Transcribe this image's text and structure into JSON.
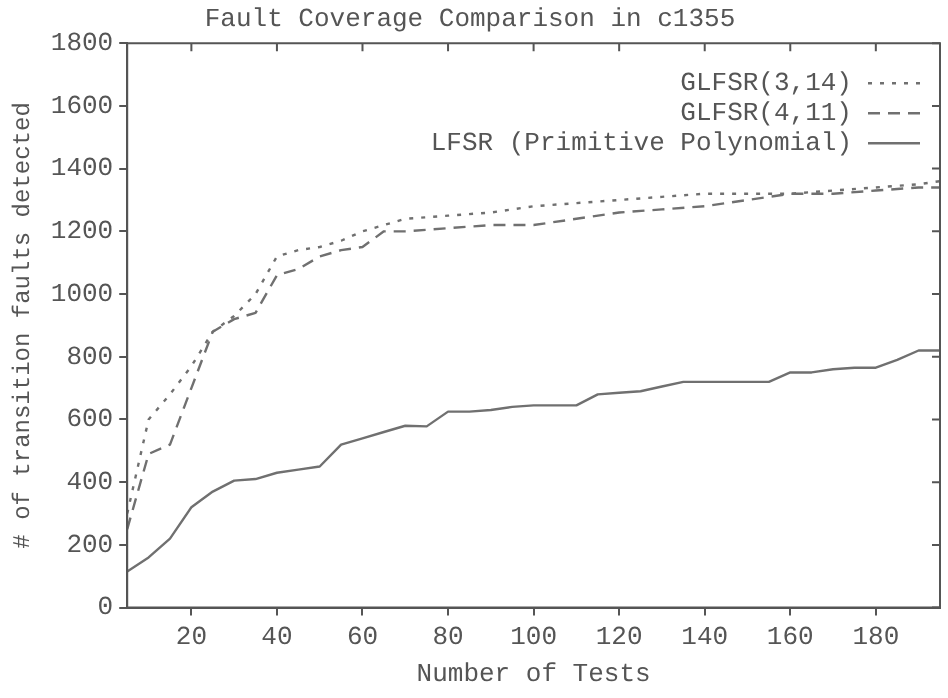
{
  "chart_data": {
    "type": "line",
    "title": "Fault Coverage Comparison in c1355",
    "xlabel": "Number of Tests",
    "ylabel": "# of transition faults detected",
    "xlim": [
      5,
      195
    ],
    "xticks": [
      20,
      40,
      60,
      80,
      100,
      120,
      140,
      160,
      180
    ],
    "ylim": [
      0,
      1800
    ],
    "yticks": [
      0,
      200,
      400,
      600,
      800,
      1000,
      1200,
      1400,
      1600,
      1800
    ],
    "grid": false,
    "legend": "top right",
    "marker": "none",
    "series": [
      {
        "name": "GLFSR(3,14)",
        "color": "#707070",
        "line_style": "dotted",
        "x": [
          5,
          10,
          15,
          20,
          25,
          30,
          35,
          40,
          45,
          50,
          55,
          60,
          65,
          70,
          75,
          80,
          90,
          100,
          110,
          120,
          130,
          140,
          150,
          160,
          170,
          180,
          190,
          195
        ],
        "values": [
          300,
          600,
          680,
          770,
          880,
          930,
          1000,
          1120,
          1140,
          1150,
          1170,
          1200,
          1220,
          1240,
          1245,
          1250,
          1260,
          1280,
          1290,
          1300,
          1310,
          1320,
          1320,
          1320,
          1330,
          1340,
          1350,
          1360
        ]
      },
      {
        "name": "GLFSR(4,11)",
        "color": "#707070",
        "line_style": "dashed",
        "x": [
          5,
          10,
          15,
          20,
          25,
          30,
          35,
          40,
          45,
          50,
          55,
          60,
          65,
          70,
          80,
          90,
          100,
          110,
          120,
          130,
          140,
          150,
          160,
          170,
          180,
          190,
          195
        ],
        "values": [
          250,
          490,
          520,
          700,
          880,
          920,
          940,
          1060,
          1080,
          1120,
          1140,
          1150,
          1200,
          1200,
          1210,
          1220,
          1220,
          1240,
          1260,
          1270,
          1280,
          1300,
          1320,
          1320,
          1330,
          1340,
          1340
        ]
      },
      {
        "name": "LFSR (Primitive Polynomial)",
        "color": "#707070",
        "line_style": "solid",
        "x": [
          5,
          10,
          15,
          20,
          25,
          30,
          35,
          40,
          45,
          50,
          55,
          60,
          65,
          70,
          75,
          80,
          85,
          90,
          95,
          100,
          105,
          110,
          115,
          120,
          125,
          130,
          135,
          140,
          145,
          150,
          155,
          160,
          165,
          170,
          175,
          180,
          185,
          190,
          195
        ],
        "values": [
          115,
          160,
          220,
          320,
          370,
          405,
          410,
          430,
          440,
          450,
          520,
          540,
          560,
          580,
          578,
          625,
          625,
          630,
          640,
          645,
          645,
          645,
          680,
          685,
          690,
          705,
          720,
          720,
          720,
          720,
          720,
          750,
          750,
          760,
          765,
          765,
          790,
          820,
          820
        ]
      }
    ]
  }
}
